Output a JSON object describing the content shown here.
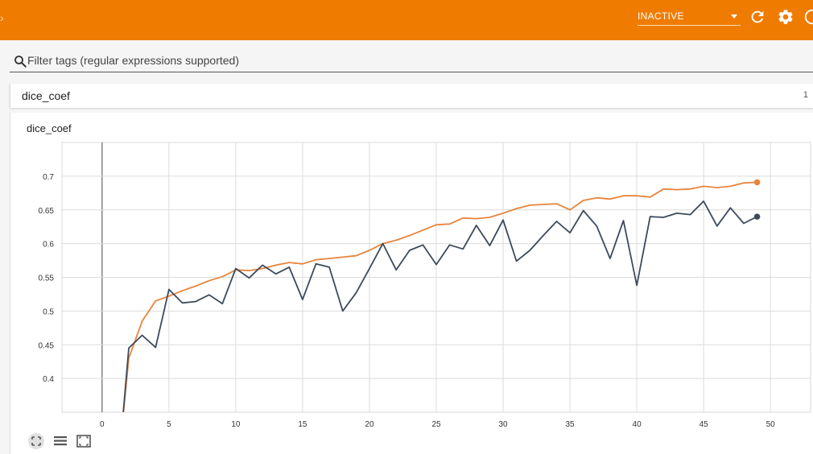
{
  "topbar": {
    "run_status": "INACTIVE",
    "icons": [
      "refresh-icon",
      "gear-icon",
      "help-icon"
    ],
    "color": "#ef7c00"
  },
  "filter": {
    "placeholder": "Filter tags (regular expressions supported)",
    "value": ""
  },
  "group": {
    "title": "dice_coef",
    "count": "1"
  },
  "card": {
    "title": "dice_coef"
  },
  "chart_data": {
    "type": "line",
    "xlim": [
      -3,
      53
    ],
    "ylim": [
      0.35,
      0.75
    ],
    "xticks": [
      0,
      5,
      10,
      15,
      20,
      25,
      30,
      35,
      40,
      45,
      50
    ],
    "yticks": [
      0.4,
      0.45,
      0.5,
      0.55,
      0.6,
      0.65,
      0.7
    ],
    "ytick_labels": [
      "0.4",
      "0.45",
      "0.5",
      "0.55",
      "0.6",
      "0.65",
      "0.7"
    ],
    "grid": true,
    "series": [
      {
        "color": "#e8843c",
        "x": [
          1.5,
          2,
          3,
          4,
          5,
          6,
          7,
          8,
          9,
          10,
          11,
          12,
          13,
          14,
          15,
          16,
          17,
          18,
          19,
          20,
          21,
          22,
          23,
          24,
          25,
          26,
          27,
          28,
          29,
          30,
          31,
          32,
          33,
          34,
          35,
          36,
          37,
          38,
          39,
          40,
          41,
          42,
          43,
          44,
          45,
          46,
          47,
          48,
          49
        ],
        "y": [
          0.33,
          0.43,
          0.485,
          0.515,
          0.522,
          0.53,
          0.537,
          0.545,
          0.551,
          0.561,
          0.56,
          0.563,
          0.568,
          0.572,
          0.57,
          0.576,
          0.578,
          0.58,
          0.582,
          0.59,
          0.6,
          0.605,
          0.612,
          0.62,
          0.628,
          0.629,
          0.638,
          0.637,
          0.639,
          0.645,
          0.652,
          0.657,
          0.658,
          0.659,
          0.65,
          0.664,
          0.668,
          0.666,
          0.671,
          0.671,
          0.669,
          0.681,
          0.68,
          0.681,
          0.685,
          0.683,
          0.685,
          0.69,
          0.691
        ]
      },
      {
        "color": "#3d4a5c",
        "x": [
          1.5,
          2,
          3,
          4,
          5,
          6,
          7,
          8,
          9,
          10,
          11,
          12,
          13,
          14,
          15,
          16,
          17,
          18,
          19,
          20,
          21,
          22,
          23,
          24,
          25,
          26,
          27,
          28,
          29,
          30,
          31,
          32,
          33,
          34,
          35,
          36,
          37,
          38,
          39,
          40,
          41,
          42,
          43,
          44,
          45,
          46,
          47,
          48,
          49
        ],
        "y": [
          0.33,
          0.445,
          0.464,
          0.446,
          0.532,
          0.512,
          0.514,
          0.524,
          0.511,
          0.563,
          0.549,
          0.568,
          0.555,
          0.565,
          0.517,
          0.57,
          0.565,
          0.5,
          0.527,
          0.563,
          0.6,
          0.561,
          0.59,
          0.598,
          0.569,
          0.598,
          0.592,
          0.627,
          0.597,
          0.635,
          0.574,
          0.59,
          0.612,
          0.633,
          0.616,
          0.649,
          0.626,
          0.578,
          0.634,
          0.538,
          0.64,
          0.639,
          0.645,
          0.643,
          0.663,
          0.626,
          0.653,
          0.63,
          0.64
        ]
      }
    ]
  },
  "controls": [
    {
      "name": "fit-domain-button",
      "icon": "expand-icon"
    },
    {
      "name": "toggle-log-scale-button",
      "icon": "list-icon"
    },
    {
      "name": "fit-data-button",
      "icon": "fit-screen-icon"
    }
  ]
}
